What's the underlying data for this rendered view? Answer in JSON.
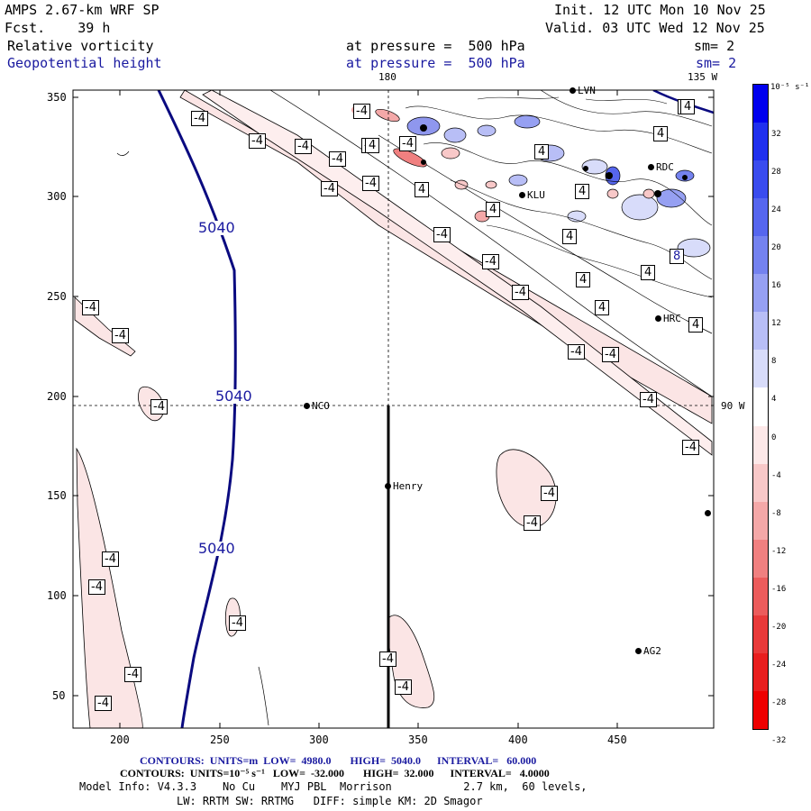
{
  "header": {
    "model": "AMPS 2.67-km WRF SP",
    "forecast": "Fcst.    39 h",
    "init": "Init. 12 UTC Mon 10 Nov 25",
    "valid": "Valid. 03 UTC Wed 12 Nov 25",
    "field1_name": "Relative vorticity",
    "field1_level": "at pressure =  500 hPa",
    "field1_sm": "sm= 2",
    "field2_name": "Geopotential height",
    "field2_level": "at pressure =  500 hPa",
    "field2_sm": "sm= 2"
  },
  "map": {
    "x_ticks": [
      "200",
      "250",
      "300",
      "350",
      "400",
      "450"
    ],
    "y_ticks": [
      "350",
      "300",
      "250",
      "200",
      "150",
      "100",
      "50"
    ],
    "lon_top_180": "180",
    "lon_top_135w": "135 W",
    "lon_right_90w": "90 W",
    "height_labels": [
      "5040",
      "5040",
      "5040"
    ],
    "vort_labels": [
      "-4",
      "-4",
      "-4",
      "-4",
      "-4",
      "-4",
      "-4",
      "-4",
      "-4",
      "-4",
      "-4",
      "-4",
      "-4",
      "-4",
      "-4",
      "-4",
      "-4",
      "-4",
      "-4",
      "-4",
      "-4",
      "-4",
      "-4",
      "-4",
      "-4",
      "-4",
      "-4",
      "-4",
      "-4"
    ],
    "pos_labels": [
      "4",
      "4",
      "4",
      "4",
      "4",
      "4",
      "4",
      "4",
      "4",
      "4",
      "8",
      "4",
      "4"
    ],
    "stations": [
      {
        "name": "NCO"
      },
      {
        "name": "Henry"
      },
      {
        "name": "RDC"
      },
      {
        "name": "KLU"
      },
      {
        "name": "HRC"
      },
      {
        "name": "AG2"
      },
      {
        "name": "LVN"
      }
    ]
  },
  "colorbar": {
    "unit": "10⁻⁵ s⁻¹",
    "ticks": [
      "32",
      "28",
      "24",
      "20",
      "16",
      "12",
      "8",
      "4",
      "0",
      "-4",
      "-8",
      "-12",
      "-16",
      "-20",
      "-24",
      "-28",
      "-32"
    ],
    "colors": [
      "#0000ee",
      "#2030ee",
      "#3a4cee",
      "#5666ee",
      "#7482ef",
      "#96a0f2",
      "#b8bef6",
      "#d8dcfa",
      "#ffffff",
      "#fde8e8",
      "#f8c8c8",
      "#f4a8a8",
      "#f08080",
      "#ec5c5c",
      "#e83a3a",
      "#e81e1e",
      "#ee0000"
    ]
  },
  "footer": {
    "line1": "CONTOURS:  UNITS=m  LOW=  4980.0       HIGH=  5040.0      INTERVAL=   60.000",
    "line2": "CONTOURS:  UNITS=10⁻⁵ s⁻¹   LOW=  -32.000       HIGH=  32.000      INTERVAL=   4.0000",
    "line3": "Model Info: V4.3.3    No Cu    MYJ PBL  Morrison           2.7 km,  60 levels,",
    "line4": "LW: RRTM SW: RRTMG   DIFF: simple KM: 2D Smagor"
  }
}
